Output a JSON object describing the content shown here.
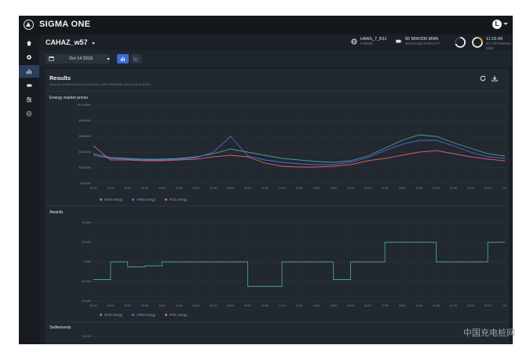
{
  "app": {
    "title": "SIGMA ONE",
    "user_initial": "L"
  },
  "header": {
    "site_name": "CAHAZ_w57",
    "pnode_value": "HAAS_7_B11",
    "pnode_label": "P-NODE",
    "capacity_value": "50 MW/200 MWh",
    "capacity_label": "INSTALLED CAPACITY",
    "time_value": "11:15:49",
    "time_label": "RT: OPTIMIZING BIDS"
  },
  "toolbar": {
    "date": "Oct 14 2019"
  },
  "results": {
    "title": "Results",
    "meta": "2019-10-14 00:00 to 2019-10-15 00:00 // LAST UPDATED: 2019-10-30 11:15:20"
  },
  "charts": {
    "prices_title": "Energy market prices",
    "awards_title": "Awards",
    "settlements_title": "Settlements",
    "legend": [
      "DAM energy",
      "FMM energy",
      "RTD energy"
    ],
    "colors": {
      "dam": "#4aa89a",
      "fmm": "#5a6ae0",
      "rtd": "#e0606a"
    }
  },
  "chart_data": [
    {
      "type": "line",
      "title": "Energy market prices",
      "yticks": [
        "$100/MWh",
        "$80/MWh",
        "$60/MWh",
        "$40/MWh",
        "$20/MWh",
        "$0/MWh"
      ],
      "ylim": [
        0,
        100
      ],
      "xticks": [
        "00:00",
        "01:00",
        "02:00",
        "03:00",
        "04:00",
        "05:00",
        "06:00",
        "07:00",
        "08:00",
        "09:00",
        "10:00",
        "11:00",
        "12:00",
        "13:00",
        "14:00",
        "15:00",
        "16:00",
        "17:00",
        "18:00",
        "19:00",
        "20:00",
        "21:00",
        "22:00",
        "23:00",
        "00:"
      ],
      "series": [
        {
          "name": "DAM energy",
          "values": [
            38,
            33,
            32,
            31,
            31,
            32,
            34,
            38,
            44,
            40,
            36,
            32,
            30,
            28,
            27,
            29,
            35,
            45,
            55,
            62,
            60,
            52,
            45,
            38,
            35
          ]
        },
        {
          "name": "FMM energy",
          "values": [
            36,
            32,
            31,
            30,
            30,
            31,
            33,
            40,
            60,
            35,
            30,
            27,
            25,
            24,
            24,
            27,
            33,
            42,
            50,
            55,
            55,
            48,
            40,
            34,
            32
          ]
        },
        {
          "name": "RTD energy",
          "values": [
            48,
            30,
            30,
            29,
            29,
            30,
            31,
            34,
            36,
            34,
            26,
            22,
            21,
            21,
            22,
            24,
            29,
            32,
            36,
            40,
            42,
            38,
            34,
            31,
            29
          ]
        }
      ],
      "legend": "bottom-left",
      "grid": true
    },
    {
      "type": "line",
      "title": "Awards",
      "yticks": [
        "40 MW",
        "20 MW",
        "0 MW",
        "-20 MW",
        "-40 MW"
      ],
      "ylim": [
        -40,
        40
      ],
      "xticks": [
        "00:00",
        "01:00",
        "02:00",
        "03:00",
        "04:00",
        "05:00",
        "06:00",
        "07:00",
        "08:00",
        "09:00",
        "10:00",
        "11:00",
        "12:00",
        "13:00",
        "14:00",
        "15:00",
        "16:00",
        "17:00",
        "18:00",
        "19:00",
        "20:00",
        "21:00",
        "22:00",
        "23:00",
        "00:"
      ],
      "series": [
        {
          "name": "DAM energy",
          "values": [
            -18,
            0,
            -5,
            -4,
            0,
            0,
            0,
            0,
            0,
            -25,
            -25,
            0,
            0,
            0,
            -18,
            0,
            0,
            20,
            20,
            20,
            0,
            0,
            0,
            20,
            20
          ]
        }
      ],
      "legend": "bottom-left",
      "grid": true
    },
    {
      "type": "line",
      "title": "Settlements",
      "yticks": [
        "$1,000"
      ],
      "series": []
    }
  ]
}
